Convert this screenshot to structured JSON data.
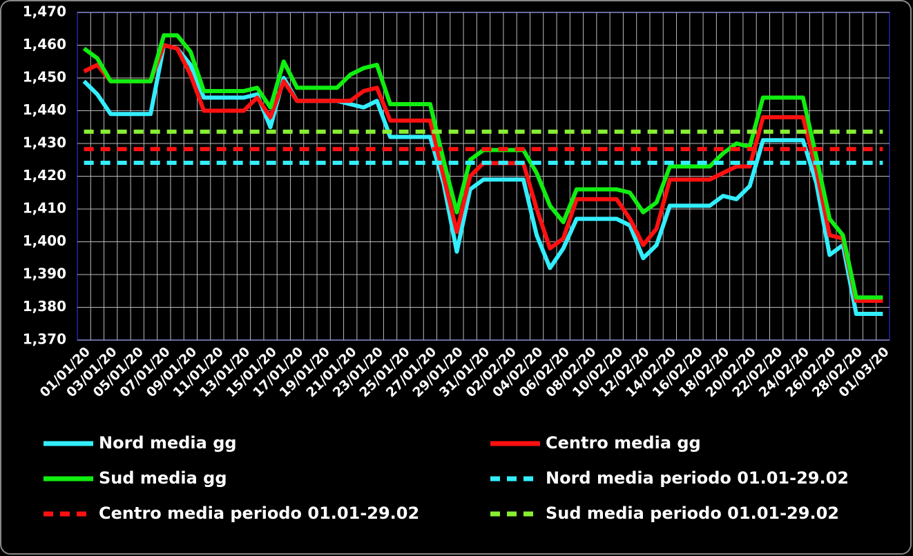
{
  "chart_data": {
    "type": "line",
    "categories": [
      "01/01/20",
      null,
      "03/01/20",
      null,
      "05/01/20",
      null,
      "07/01/20",
      null,
      "09/01/20",
      null,
      "11/01/20",
      null,
      "13/01/20",
      null,
      "15/01/20",
      null,
      "17/01/20",
      null,
      "19/01/20",
      null,
      "21/01/20",
      null,
      "23/01/20",
      null,
      "25/01/20",
      null,
      "27/01/20",
      null,
      "29/01/20",
      null,
      "31/01/20",
      null,
      "02/02/20",
      null,
      "04/02/20",
      null,
      "06/02/20",
      null,
      "08/02/20",
      null,
      "10/02/20",
      null,
      "12/02/20",
      null,
      "14/02/20",
      null,
      "16/02/20",
      null,
      "18/02/20",
      null,
      "20/02/20",
      null,
      "22/02/20",
      null,
      "24/02/20",
      null,
      "26/02/20",
      null,
      "28/02/20",
      null,
      "01/03/20"
    ],
    "series": [
      {
        "name": "Nord media gg",
        "color": "#33eeff",
        "values": [
          1449,
          1445,
          1439,
          1439,
          1439,
          1439,
          1460,
          1459,
          1454,
          1444,
          1444,
          1444,
          1444,
          1445,
          1435,
          1450,
          1443,
          1443,
          1443,
          1443,
          1442,
          1441,
          1443,
          1432,
          1432,
          1432,
          1432,
          1418,
          1397,
          1416,
          1419,
          1419,
          1419,
          1419,
          1402,
          1392,
          1398,
          1407,
          1407,
          1407,
          1407,
          1405,
          1395,
          1399,
          1411,
          1411,
          1411,
          1411,
          1414,
          1413,
          1417,
          1431,
          1431,
          1431,
          1431,
          1418,
          1396,
          1399,
          1378,
          1378,
          1378
        ]
      },
      {
        "name": "Centro media gg",
        "color": "#ff1111",
        "values": [
          1452,
          1454,
          1449,
          1449,
          1449,
          1449,
          1460,
          1459,
          1451,
          1440,
          1440,
          1440,
          1440,
          1444,
          1438,
          1449,
          1443,
          1443,
          1443,
          1443,
          1443,
          1446,
          1447,
          1437,
          1437,
          1437,
          1437,
          1420,
          1403,
          1420,
          1424,
          1424,
          1424,
          1424,
          1410,
          1398,
          1401,
          1413,
          1413,
          1413,
          1413,
          1407,
          1399,
          1404,
          1419,
          1419,
          1419,
          1419,
          1421,
          1423,
          1423,
          1438,
          1438,
          1438,
          1438,
          1422,
          1402,
          1401,
          1382,
          1382,
          1382
        ]
      },
      {
        "name": "Sud media gg",
        "color": "#11ee11",
        "values": [
          1459,
          1456,
          1449,
          1449,
          1449,
          1449,
          1463,
          1463,
          1458,
          1446,
          1446,
          1446,
          1446,
          1447,
          1441,
          1455,
          1447,
          1447,
          1447,
          1447,
          1451,
          1453,
          1454,
          1442,
          1442,
          1442,
          1442,
          1425,
          1409,
          1425,
          1428,
          1428,
          1428,
          1428,
          1421,
          1411,
          1406,
          1416,
          1416,
          1416,
          1416,
          1415,
          1409,
          1412,
          1423,
          1423,
          1423,
          1423,
          1427,
          1430,
          1429,
          1444,
          1444,
          1444,
          1444,
          1426,
          1407,
          1402,
          1383,
          1383,
          1383
        ]
      },
      {
        "name": "Nord media periodo 01.01-29.02",
        "color": "#33eeff",
        "dashed": true,
        "value": 1424.1
      },
      {
        "name": "Centro media periodo 01.01-29.02",
        "color": "#ff1111",
        "dashed": true,
        "value": 1428.3
      },
      {
        "name": "Sud media periodo 01.01-29.02",
        "color": "#88ee33",
        "dashed": true,
        "value": 1433.6
      }
    ],
    "ylim": [
      1370,
      1470
    ],
    "yticks": [
      {
        "value": 1370,
        "label": "1,370"
      },
      {
        "value": 1380,
        "label": "1,380"
      },
      {
        "value": 1390,
        "label": "1,390"
      },
      {
        "value": 1400,
        "label": "1,400"
      },
      {
        "value": 1410,
        "label": "1,410"
      },
      {
        "value": 1420,
        "label": "1,420"
      },
      {
        "value": 1430,
        "label": "1,430"
      },
      {
        "value": 1440,
        "label": "1,440"
      },
      {
        "value": 1450,
        "label": "1,450"
      },
      {
        "value": 1460,
        "label": "1,460"
      },
      {
        "value": 1470,
        "label": "1,470"
      }
    ],
    "grid": true,
    "legend": "bottom"
  }
}
